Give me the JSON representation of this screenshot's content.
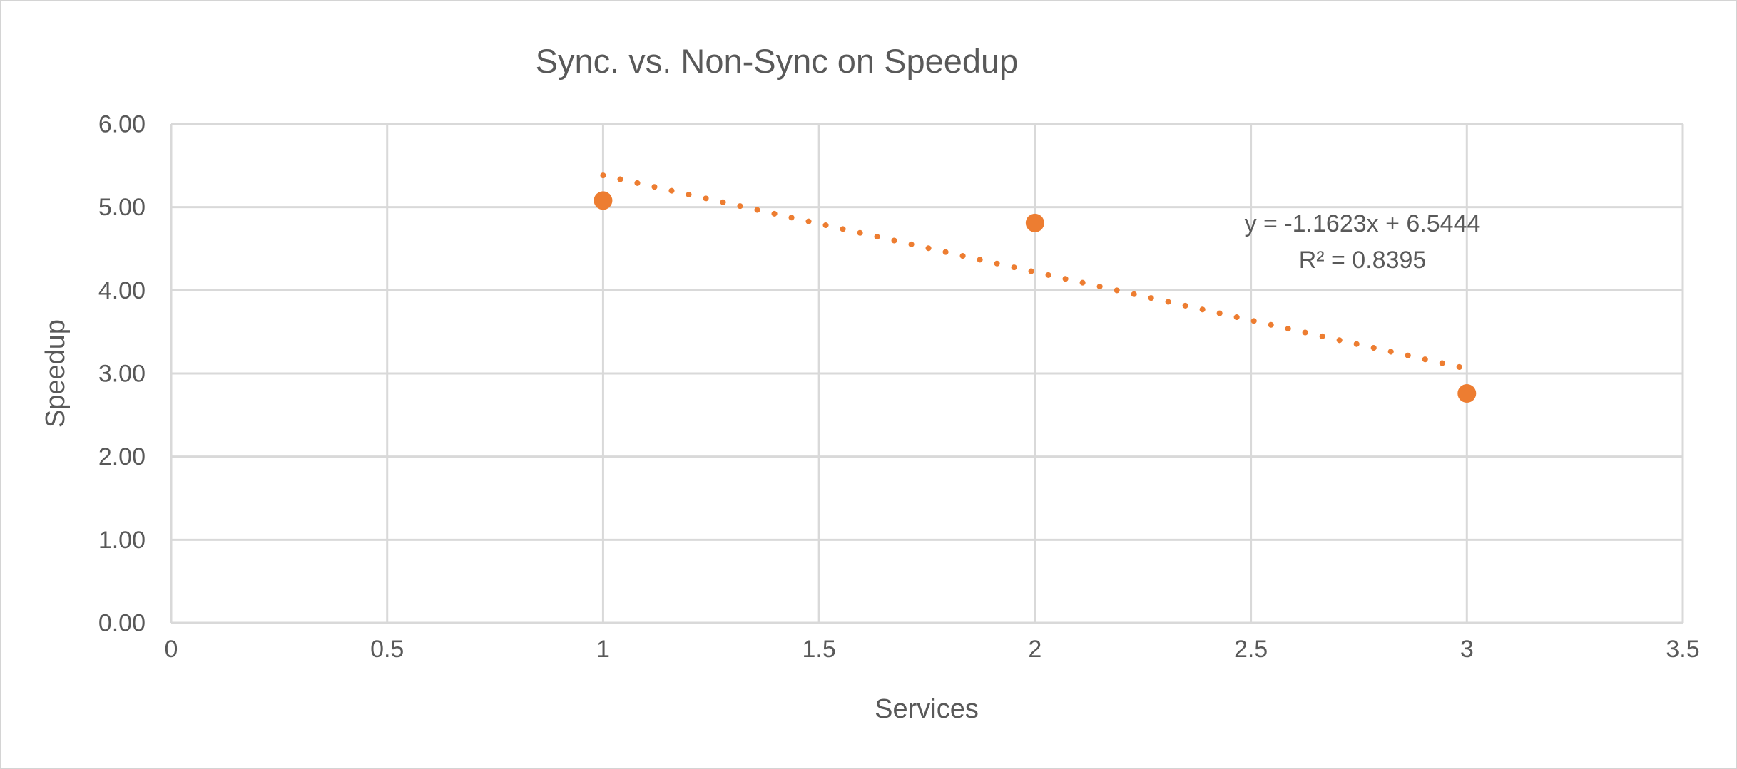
{
  "page": {
    "background_color": "#ffffff",
    "frame_border_color": "#d4d4d4"
  },
  "chart_data": {
    "type": "scatter",
    "title": "Sync. vs. Non-Sync on Speedup",
    "xlabel": "Services",
    "ylabel": "Speedup",
    "xlim": [
      0,
      3.5
    ],
    "ylim": [
      0,
      6
    ],
    "grid": true,
    "legend": "none",
    "gridline_color": "#d9d9d9",
    "text_color": "#595959",
    "x_ticks": [
      {
        "value": 0,
        "label": "0"
      },
      {
        "value": 0.5,
        "label": "0.5"
      },
      {
        "value": 1,
        "label": "1"
      },
      {
        "value": 1.5,
        "label": "1.5"
      },
      {
        "value": 2,
        "label": "2"
      },
      {
        "value": 2.5,
        "label": "2.5"
      },
      {
        "value": 3,
        "label": "3"
      },
      {
        "value": 3.5,
        "label": "3.5"
      }
    ],
    "y_ticks": [
      {
        "value": 0,
        "label": "0.00"
      },
      {
        "value": 1,
        "label": "1.00"
      },
      {
        "value": 2,
        "label": "2.00"
      },
      {
        "value": 3,
        "label": "3.00"
      },
      {
        "value": 4,
        "label": "4.00"
      },
      {
        "value": 5,
        "label": "5.00"
      },
      {
        "value": 6,
        "label": "6.00"
      }
    ],
    "series": [
      {
        "name": "Speedup",
        "marker": "circle",
        "marker_color": "#ed7d31",
        "marker_radius_px": 13,
        "points": [
          {
            "x": 1,
            "y": 5.08
          },
          {
            "x": 2,
            "y": 4.81
          },
          {
            "x": 3,
            "y": 2.76
          }
        ]
      }
    ],
    "trendline": {
      "type": "linear",
      "style": "dotted",
      "color": "#ed7d31",
      "slope": -1.1623,
      "intercept": 6.5444,
      "x_start": 1,
      "x_end": 3,
      "equation": "y = -1.1623x + 6.5444",
      "r_squared": "R² = 0.8395"
    }
  }
}
